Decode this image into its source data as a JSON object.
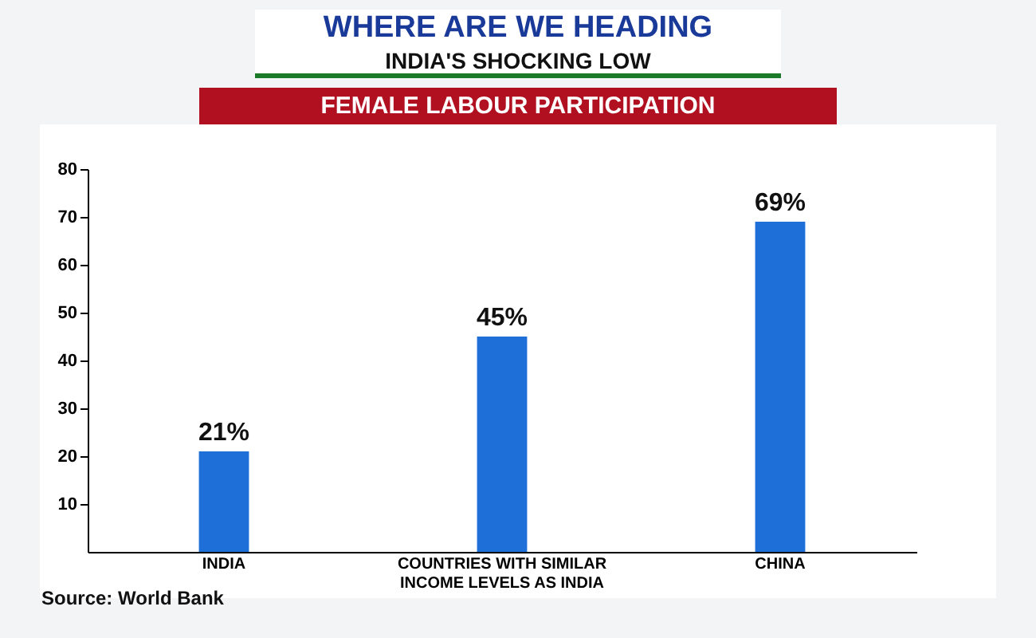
{
  "chart_data": {
    "type": "bar",
    "title": "WHERE ARE WE HEADING",
    "subtitle": "INDIA'S SHOCKING LOW",
    "annotations": [
      "FEMALE LABOUR PARTICIPATION",
      "Source: World Bank"
    ],
    "categories": [
      "INDIA",
      "COUNTRIES WITH SIMILAR INCOME LEVELS AS INDIA",
      "CHINA"
    ],
    "values": [
      21,
      45,
      69
    ],
    "value_labels": [
      "21%",
      "45%",
      "69%"
    ],
    "color": "#1f6fd8",
    "ylim": [
      0,
      80
    ],
    "yticks": [
      10,
      20,
      30,
      40,
      50,
      60,
      70,
      80
    ],
    "grid": false
  }
}
